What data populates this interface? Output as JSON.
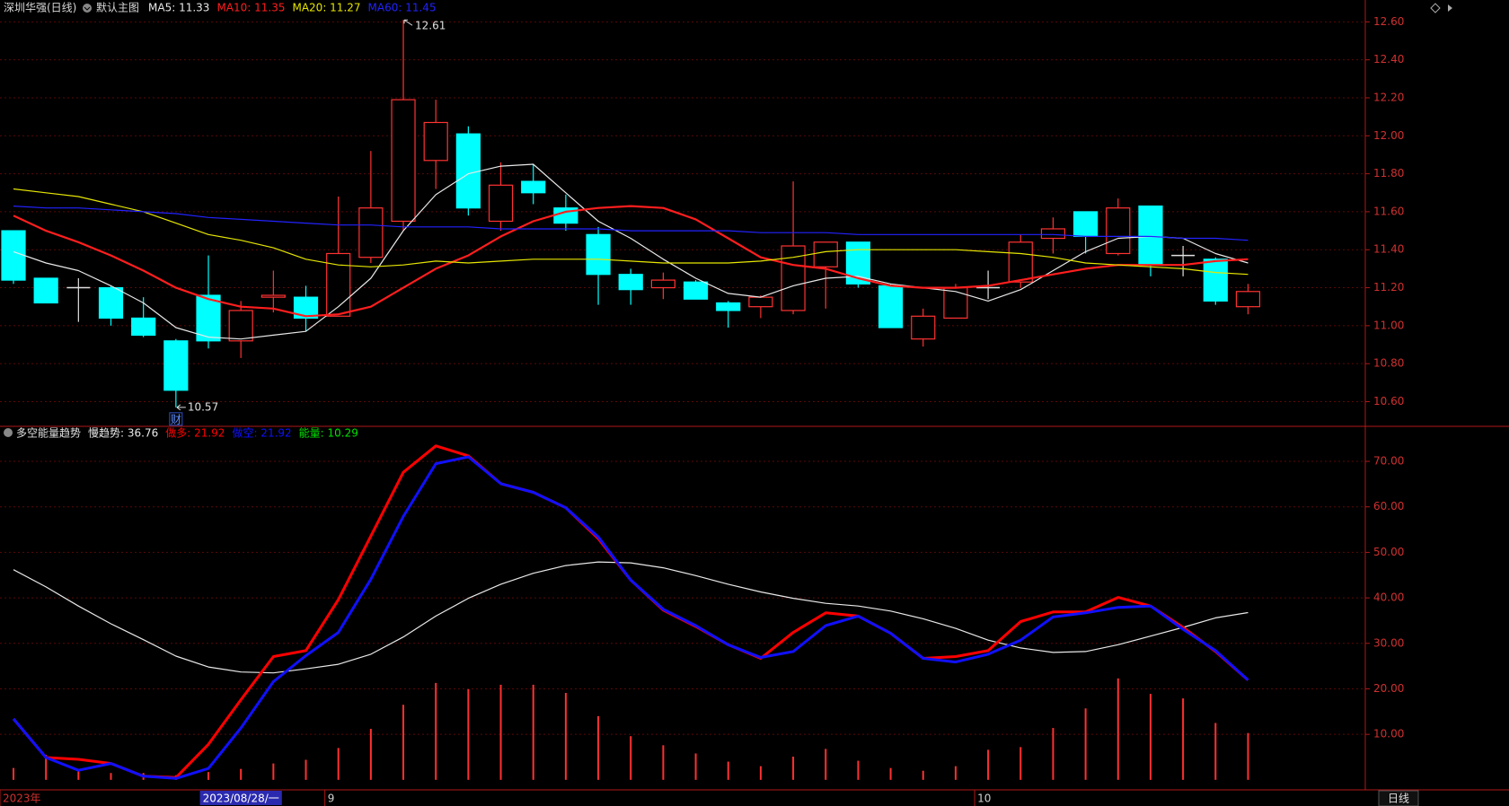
{
  "chart_data": [
    {
      "type": "candlestick",
      "title": "深圳华强(日线)",
      "subtitle": "默认主图",
      "categories": [
        "2023年",
        null,
        null,
        null,
        null,
        null,
        null,
        "2023/08/28/一",
        null,
        null,
        "9",
        null,
        null,
        null,
        null,
        null,
        null,
        null,
        null,
        null,
        null,
        null,
        null,
        null,
        null,
        null,
        null,
        null,
        null,
        null,
        "10",
        null,
        null,
        null,
        null,
        null,
        null,
        null,
        null
      ],
      "open": [
        11.5,
        11.25,
        11.2,
        11.2,
        11.04,
        10.92,
        11.16,
        10.92,
        11.15,
        11.15,
        11.05,
        11.36,
        11.55,
        11.87,
        12.01,
        11.55,
        11.76,
        11.62,
        11.48,
        11.27,
        11.2,
        11.23,
        11.12,
        11.1,
        11.08,
        11.31,
        11.44,
        11.21,
        10.93,
        11.04,
        11.2,
        11.23,
        11.46,
        11.6,
        11.38,
        11.63,
        11.37,
        11.35,
        11.1
      ],
      "high": [
        11.5,
        11.25,
        11.25,
        11.21,
        11.15,
        10.93,
        11.37,
        11.13,
        11.29,
        11.21,
        11.68,
        11.92,
        12.61,
        12.19,
        12.05,
        11.86,
        11.85,
        11.69,
        11.52,
        11.3,
        11.28,
        11.24,
        11.13,
        11.16,
        11.76,
        11.44,
        11.44,
        11.22,
        11.09,
        11.22,
        11.29,
        11.48,
        11.57,
        11.6,
        11.67,
        11.63,
        11.42,
        11.36,
        11.22
      ],
      "low": [
        11.22,
        11.12,
        11.02,
        11.0,
        10.94,
        10.57,
        10.88,
        10.83,
        11.07,
        10.97,
        11.05,
        11.33,
        11.5,
        11.72,
        11.58,
        11.5,
        11.64,
        11.5,
        11.11,
        11.11,
        11.14,
        11.14,
        10.99,
        11.04,
        11.06,
        11.09,
        11.2,
        10.99,
        10.89,
        11.04,
        11.14,
        11.2,
        11.38,
        11.38,
        11.37,
        11.26,
        11.26,
        11.11,
        11.06
      ],
      "close": [
        11.24,
        11.12,
        11.2,
        11.04,
        10.95,
        10.66,
        10.92,
        11.08,
        11.16,
        11.04,
        11.38,
        11.62,
        12.19,
        12.07,
        11.62,
        11.74,
        11.7,
        11.54,
        11.27,
        11.19,
        11.24,
        11.14,
        11.08,
        11.15,
        11.42,
        11.44,
        11.22,
        10.99,
        11.05,
        11.2,
        11.2,
        11.44,
        11.51,
        11.47,
        11.62,
        11.32,
        11.37,
        11.13,
        11.18
      ],
      "up_color": "#ff3232",
      "down_color": "#00ffff",
      "flat_color": "#e0e0e0",
      "series": [
        {
          "name": "MA5: 11.33",
          "color": "#e8e8e8",
          "values": [
            11.39,
            11.33,
            11.29,
            11.21,
            11.12,
            10.99,
            10.94,
            10.93,
            10.95,
            10.97,
            11.1,
            11.25,
            11.5,
            11.69,
            11.8,
            11.84,
            11.85,
            11.7,
            11.55,
            11.46,
            11.35,
            11.25,
            11.17,
            11.15,
            11.21,
            11.25,
            11.26,
            11.22,
            11.2,
            11.18,
            11.13,
            11.19,
            11.29,
            11.39,
            11.46,
            11.47,
            11.46,
            11.38,
            11.33
          ]
        },
        {
          "name": "MA10: 11.35",
          "color": "#ff1e1e",
          "values": [
            11.58,
            11.5,
            11.44,
            11.37,
            11.29,
            11.2,
            11.14,
            11.1,
            11.09,
            11.05,
            11.06,
            11.1,
            11.2,
            11.3,
            11.37,
            11.47,
            11.55,
            11.6,
            11.62,
            11.63,
            11.62,
            11.56,
            11.46,
            11.36,
            11.32,
            11.3,
            11.25,
            11.21,
            11.2,
            11.2,
            11.21,
            11.24,
            11.27,
            11.3,
            11.32,
            11.32,
            11.32,
            11.34,
            11.35
          ]
        },
        {
          "name": "MA20: 11.27",
          "color": "#e6e600",
          "values": [
            11.72,
            11.7,
            11.68,
            11.64,
            11.6,
            11.54,
            11.48,
            11.45,
            11.41,
            11.35,
            11.32,
            11.31,
            11.32,
            11.34,
            11.33,
            11.34,
            11.35,
            11.35,
            11.35,
            11.34,
            11.33,
            11.33,
            11.33,
            11.34,
            11.36,
            11.39,
            11.4,
            11.4,
            11.4,
            11.4,
            11.39,
            11.38,
            11.36,
            11.33,
            11.32,
            11.31,
            11.3,
            11.28,
            11.27
          ]
        },
        {
          "name": "MA60: 11.45",
          "color": "#2222ff",
          "values": [
            11.63,
            11.62,
            11.62,
            11.61,
            11.6,
            11.59,
            11.57,
            11.56,
            11.55,
            11.54,
            11.53,
            11.53,
            11.52,
            11.52,
            11.52,
            11.51,
            11.51,
            11.51,
            11.51,
            11.5,
            11.5,
            11.5,
            11.5,
            11.49,
            11.49,
            11.49,
            11.48,
            11.48,
            11.48,
            11.48,
            11.48,
            11.48,
            11.48,
            11.47,
            11.47,
            11.47,
            11.46,
            11.46,
            11.45
          ]
        }
      ],
      "annotations": [
        {
          "text": "财",
          "index": 5
        }
      ],
      "ylim": [
        10.47,
        12.63
      ],
      "yticks": [
        {
          "value": 12.6,
          "label": "12.60"
        },
        {
          "value": 12.4,
          "label": "12.40"
        },
        {
          "value": 12.2,
          "label": "12.20"
        },
        {
          "value": 12.0,
          "label": "12.00"
        },
        {
          "value": 11.8,
          "label": "11.80"
        },
        {
          "value": 11.6,
          "label": "11.60"
        },
        {
          "value": 11.4,
          "label": "11.40"
        },
        {
          "value": 11.2,
          "label": "11.20"
        },
        {
          "value": 11.0,
          "label": "11.00"
        },
        {
          "value": 10.8,
          "label": "10.80"
        },
        {
          "value": 10.6,
          "label": "10.60"
        }
      ],
      "grid": true
    },
    {
      "type": "line",
      "title": "多空能量趋势",
      "series": [
        {
          "name": "慢趋势: 36.76",
          "color": "#e8e8e8",
          "values": [
            46.2,
            42.4,
            38.2,
            34.3,
            30.8,
            27.2,
            24.8,
            23.7,
            23.5,
            24.4,
            25.4,
            27.6,
            31.4,
            36.0,
            39.9,
            43.0,
            45.4,
            47.1,
            47.9,
            47.7,
            46.6,
            44.9,
            43.0,
            41.3,
            39.9,
            38.8,
            38.2,
            37.1,
            35.4,
            33.3,
            30.7,
            29.0,
            28.0,
            28.2,
            29.7,
            31.6,
            33.5,
            35.6,
            36.76
          ]
        },
        {
          "name": "做多: 21.92",
          "color": "#ff0000",
          "values": [
            13.4,
            4.9,
            4.5,
            3.6,
            0.8,
            0.5,
            7.8,
            17.6,
            27.1,
            28.4,
            39.6,
            53.6,
            67.6,
            73.4,
            71.2,
            65.1,
            63.2,
            59.8,
            53.0,
            43.9,
            37.3,
            33.7,
            29.7,
            26.7,
            32.4,
            36.7,
            36.0,
            32.2,
            26.7,
            27.1,
            28.4,
            34.8,
            36.9,
            36.9,
            40.1,
            38.2,
            33.5,
            28.2,
            21.92
          ]
        },
        {
          "name": "做空: 21.92",
          "color": "#1010ff",
          "values": [
            13.4,
            4.9,
            2.1,
            3.6,
            0.8,
            0.3,
            2.5,
            11.4,
            21.6,
            27.3,
            32.4,
            44.1,
            57.9,
            69.5,
            71.0,
            65.1,
            63.2,
            59.8,
            53.4,
            43.9,
            37.5,
            33.9,
            29.7,
            26.9,
            28.2,
            33.9,
            36.0,
            32.2,
            26.7,
            25.9,
            27.6,
            30.7,
            35.8,
            36.7,
            37.9,
            38.2,
            33.1,
            28.4,
            21.92
          ]
        },
        {
          "name": "能量: 10.29",
          "type": "bar",
          "color": "#ff3030",
          "legend_color": "#00e000",
          "values": [
            2.6,
            5.5,
            2.2,
            1.5,
            1.5,
            1.0,
            1.7,
            2.4,
            3.6,
            4.4,
            7.0,
            11.2,
            16.5,
            21.3,
            19.9,
            20.9,
            20.9,
            19.1,
            14.0,
            9.6,
            7.6,
            5.8,
            4.0,
            3.0,
            5.1,
            6.8,
            4.2,
            2.6,
            2.0,
            3.0,
            6.6,
            7.2,
            11.4,
            15.7,
            22.3,
            18.9,
            17.9,
            12.5,
            10.29
          ]
        }
      ],
      "ylim": [
        -2.2,
        77.7
      ],
      "yticks": [
        {
          "value": 70,
          "label": "70.00"
        },
        {
          "value": 60,
          "label": "60.00"
        },
        {
          "value": 50,
          "label": "50.00"
        },
        {
          "value": 40,
          "label": "40.00"
        },
        {
          "value": 30,
          "label": "30.00"
        },
        {
          "value": 20,
          "label": "20.00"
        },
        {
          "value": 10,
          "label": "10.00"
        }
      ],
      "grid": true
    }
  ],
  "footer": {
    "period": "日线"
  }
}
